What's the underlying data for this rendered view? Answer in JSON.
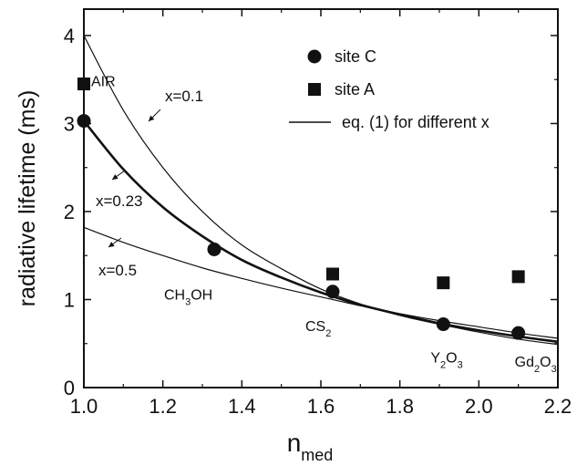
{
  "chart_data": {
    "type": "scatter",
    "xlabel": "n",
    "xlabel_sub": "med",
    "ylabel": "radiative lifetime (ms)",
    "xlim": [
      1.0,
      2.2
    ],
    "ylim": [
      0,
      4.3
    ],
    "x_ticks": [
      "1.0",
      "1.2",
      "1.4",
      "1.6",
      "1.8",
      "2.0",
      "2.2"
    ],
    "y_ticks": [
      "0",
      "1",
      "2",
      "3",
      "4"
    ],
    "grid": false,
    "legend_position": "top-right",
    "series": [
      {
        "name": "site C",
        "marker": "circle",
        "points": [
          {
            "x": 1.0,
            "y": 3.03
          },
          {
            "x": 1.33,
            "y": 1.57
          },
          {
            "x": 1.63,
            "y": 1.09
          },
          {
            "x": 1.91,
            "y": 0.72
          },
          {
            "x": 2.1,
            "y": 0.62
          }
        ]
      },
      {
        "name": "site A",
        "marker": "square",
        "points": [
          {
            "x": 1.0,
            "y": 3.45
          },
          {
            "x": 1.63,
            "y": 1.29
          },
          {
            "x": 1.91,
            "y": 1.19
          },
          {
            "x": 2.1,
            "y": 1.26
          }
        ]
      },
      {
        "name": "eq. (1) for different x",
        "marker": "line",
        "curves": [
          {
            "label": "x=0.1",
            "x": [
              1.0,
              1.1,
              1.2,
              1.3,
              1.4,
              1.5,
              1.6,
              1.7,
              1.8,
              1.9,
              2.0,
              2.1,
              2.2
            ],
            "y": [
              4.0,
              3.15,
              2.5,
              2.0,
              1.62,
              1.35,
              1.12,
              0.95,
              0.82,
              0.72,
              0.63,
              0.55,
              0.49
            ]
          },
          {
            "label": "x=0.23",
            "x": [
              1.0,
              1.1,
              1.2,
              1.3,
              1.4,
              1.5,
              1.6,
              1.7,
              1.8,
              1.9,
              2.0,
              2.1,
              2.2
            ],
            "y": [
              3.03,
              2.48,
              2.05,
              1.72,
              1.45,
              1.25,
              1.08,
              0.94,
              0.83,
              0.73,
              0.65,
              0.58,
              0.52
            ]
          },
          {
            "label": "x=0.5",
            "x": [
              1.0,
              1.1,
              1.2,
              1.3,
              1.4,
              1.5,
              1.6,
              1.7,
              1.8,
              1.9,
              2.0,
              2.1,
              2.2
            ],
            "y": [
              1.82,
              1.65,
              1.5,
              1.36,
              1.24,
              1.13,
              1.03,
              0.93,
              0.84,
              0.76,
              0.69,
              0.62,
              0.56
            ]
          }
        ]
      }
    ],
    "annotations": [
      {
        "text": "AIR",
        "x": 1.0,
        "y": 3.03
      },
      {
        "text": "CH",
        "sub": "3",
        "text2": "OH",
        "x": 1.33,
        "y": 1.57
      },
      {
        "text": "CS",
        "sub": "2",
        "text2": "",
        "x": 1.63,
        "y": 1.09
      },
      {
        "text": "Y",
        "sub": "2",
        "text2": "O",
        "sub2": "3",
        "x": 1.91,
        "y": 0.72
      },
      {
        "text": "Gd",
        "sub": "2",
        "text2": "O",
        "sub2": "3",
        "x": 2.1,
        "y": 0.62
      }
    ]
  }
}
